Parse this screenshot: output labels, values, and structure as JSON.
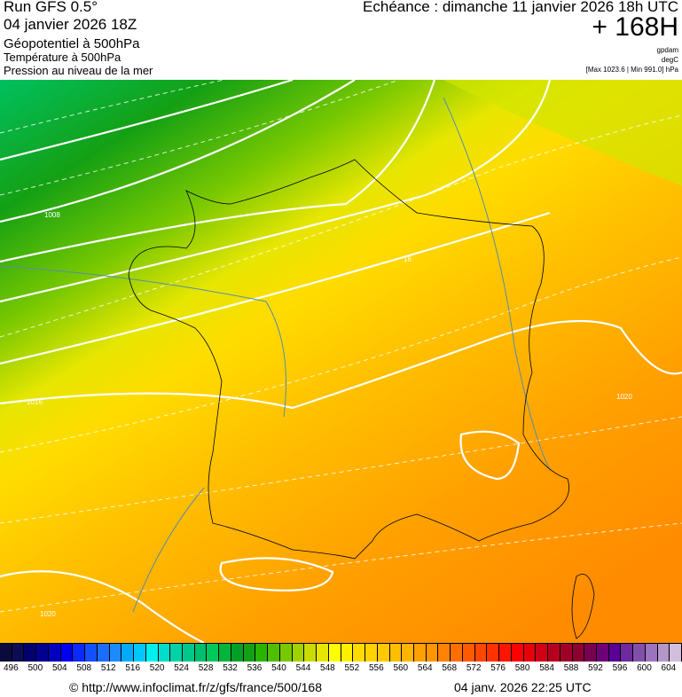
{
  "header": {
    "run": "Run GFS 0.5°",
    "run_date": "04 janvier 2026 18Z",
    "field1": "Géopotentiel à 500hPa",
    "field2": "Température à 500hPa",
    "field3": "Pression au niveau de la mer",
    "echeance": "Echéance : dimanche 11 janvier 2026 18h UTC",
    "lead": "+ 168H",
    "unit1": "gpdam",
    "unit2": "degC",
    "minmax": "[Max 1023.6 | Min 991.0] hPa"
  },
  "map": {
    "contour_labels": [
      "1008",
      "1016",
      "1020",
      "1020",
      "16"
    ]
  },
  "legend": {
    "labels": [
      "496",
      "500",
      "504",
      "508",
      "512",
      "516",
      "520",
      "524",
      "528",
      "532",
      "536",
      "540",
      "544",
      "548",
      "552",
      "556",
      "560",
      "564",
      "568",
      "572",
      "576",
      "580",
      "584",
      "588",
      "592",
      "596",
      "600",
      "604"
    ],
    "colors": [
      "#0a0a3c",
      "#0c0c55",
      "#00006e",
      "#000090",
      "#0000c0",
      "#0000f0",
      "#0a28ff",
      "#1450ff",
      "#1a6eff",
      "#1a8cff",
      "#00aaff",
      "#00c8ff",
      "#00f0f0",
      "#00dccc",
      "#00d2a8",
      "#00c88c",
      "#00be6e",
      "#00c85a",
      "#00b43c",
      "#00a028",
      "#14a014",
      "#28b400",
      "#50be00",
      "#78c800",
      "#a0d200",
      "#c8dc00",
      "#e6e600",
      "#ffff00",
      "#fff000",
      "#ffdc00",
      "#ffd200",
      "#ffc800",
      "#ffbe00",
      "#ffb400",
      "#ffa000",
      "#ff9600",
      "#ff8200",
      "#ff6e00",
      "#ff5a00",
      "#ff4600",
      "#ff3200",
      "#ff1400",
      "#ff0000",
      "#e6000a",
      "#d20014",
      "#b4001e",
      "#a00028",
      "#8c0032",
      "#780050",
      "#6e0078",
      "#5a0096",
      "#6e28a0",
      "#8250aa",
      "#9b73be",
      "#b496c8",
      "#d2bede"
    ]
  },
  "footer": {
    "url": "© http://www.infoclimat.fr/z/gfs/france/500/168",
    "timestamp": "04 janv. 2026 22:25 UTC"
  }
}
